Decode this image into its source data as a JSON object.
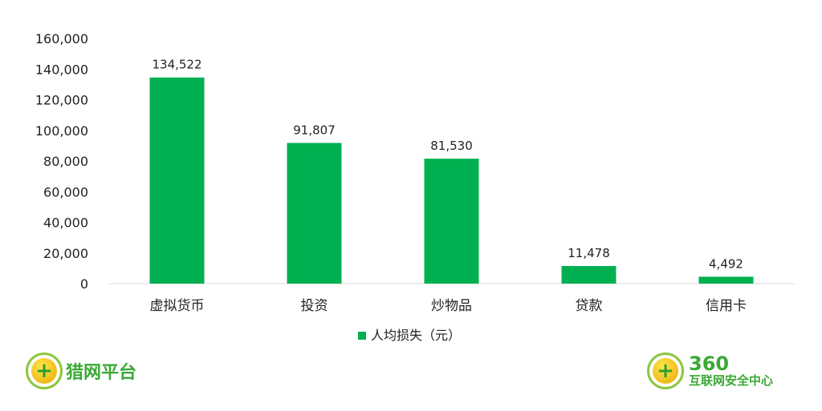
{
  "chart_data": {
    "type": "bar",
    "categories": [
      "虚拟货币",
      "投资",
      "炒物品",
      "贷款",
      "信用卡"
    ],
    "series": [
      {
        "name": "人均损失（元）",
        "values": [
          134522,
          91807,
          81530,
          11478,
          4492
        ]
      }
    ],
    "data_labels": [
      "134,522",
      "91,807",
      "81,530",
      "11,478",
      "4,492"
    ],
    "yticks": [
      "0",
      "20,000",
      "40,000",
      "60,000",
      "80,000",
      "100,000",
      "120,000",
      "140,000",
      "160,000"
    ],
    "ylim": [
      0,
      160000
    ],
    "grid": false,
    "legend": "bottom",
    "bar_color": "#00b050"
  },
  "logos": {
    "left": {
      "text": "猎网平台"
    },
    "right": {
      "text_top": "360",
      "text_bottom": "互联网安全中心"
    }
  }
}
